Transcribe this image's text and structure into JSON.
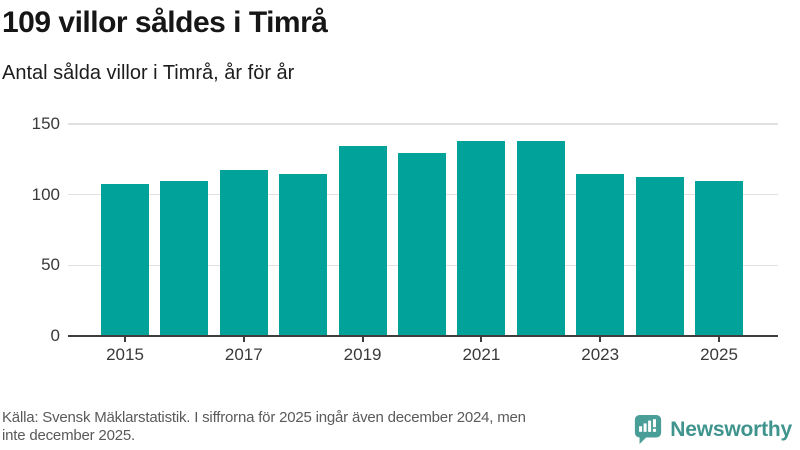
{
  "chart_data": {
    "type": "bar",
    "title": "109 villor såldes i Timrå",
    "subtitle": "Antal sålda villor i Timrå, år för år",
    "categories": [
      2015,
      2016,
      2017,
      2018,
      2019,
      2020,
      2021,
      2022,
      2023,
      2024,
      2025
    ],
    "values": [
      107,
      109,
      117,
      114,
      134,
      129,
      137,
      137,
      114,
      112,
      109
    ],
    "xlabel": "",
    "ylabel": "",
    "ylim": [
      0,
      150
    ],
    "yticks": [
      0,
      50,
      100,
      150
    ],
    "xtick_labels": [
      "2015",
      "2017",
      "2019",
      "2021",
      "2023",
      "2025"
    ],
    "xtick_indices": [
      0,
      2,
      4,
      6,
      8,
      10
    ],
    "grid": "horizontal",
    "legend": "none",
    "bar_color": "#00a29a"
  },
  "footer": {
    "source_lines": [
      "Källa: Svensk Mäklarstatistik. I siffrorna för 2025 ingår även december 2024, men",
      "inte december 2025."
    ],
    "logo_text": "Newsworthy"
  },
  "colors": {
    "bar": "#00a29a",
    "logo_text": "#3f948e",
    "logo_icon": "#4a9e98",
    "axis": "#3d3d3d",
    "grid": "#e1e1e1"
  }
}
